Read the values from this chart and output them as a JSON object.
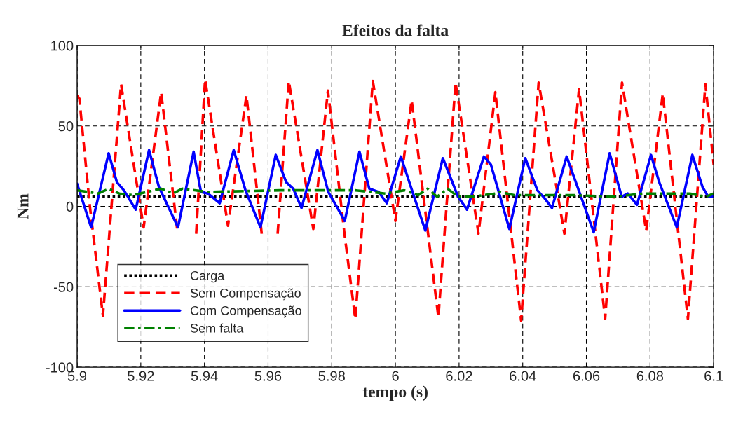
{
  "chart_data": {
    "type": "line",
    "title": "Efeitos da falta",
    "xlabel": "tempo (s)",
    "ylabel": "Nm",
    "xlim": [
      5.9,
      6.1
    ],
    "xticks": [
      5.9,
      5.92,
      5.94,
      5.96,
      5.98,
      6,
      6.02,
      6.04,
      6.06,
      6.08,
      6.1
    ],
    "ylim": [
      -100,
      100
    ],
    "yticks": [
      -100,
      -50,
      0,
      50,
      100
    ],
    "grid": true,
    "legend": "lower left",
    "series": [
      {
        "name": "Carga",
        "color": "#000000",
        "line_style": "dotted",
        "x": [
          5.9,
          6.1
        ],
        "values": [
          6,
          6
        ]
      },
      {
        "name": "Sem Compensação",
        "color": "#ff0000",
        "line_style": "dashed",
        "x": [
          5.9,
          5.9007,
          5.904,
          5.9081,
          5.9138,
          5.9209,
          5.9264,
          5.9316,
          5.9335,
          5.9374,
          5.9402,
          5.9474,
          5.9532,
          5.958,
          5.96,
          5.963,
          5.9665,
          5.9742,
          5.9788,
          5.984,
          5.9874,
          5.9929,
          6.0,
          6.0051,
          6.0135,
          6.0189,
          6.0261,
          6.0314,
          6.0395,
          6.045,
          6.0531,
          6.0577,
          6.0659,
          6.0712,
          6.0788,
          6.084,
          6.0919,
          6.0974,
          6.1
        ],
        "values": [
          69,
          67,
          0,
          -68,
          76,
          -13,
          71,
          -17,
          null,
          -17,
          79,
          -12,
          69,
          -17,
          null,
          -17,
          78,
          -14,
          72,
          -17,
          -70,
          78,
          -9,
          66,
          -69,
          77,
          -17,
          71,
          -71,
          77,
          -17,
          73,
          -70,
          77,
          -15,
          70,
          -70,
          76,
          26
        ]
      },
      {
        "name": "Com Compensação",
        "color": "#0000ff",
        "line_style": "solid",
        "x": [
          5.9,
          5.9044,
          5.9099,
          5.9125,
          5.9147,
          5.9184,
          5.9226,
          5.9257,
          5.9317,
          5.9366,
          5.9389,
          5.9411,
          5.9448,
          5.9492,
          5.9529,
          5.9576,
          5.9624,
          5.9657,
          5.9679,
          5.9705,
          5.9755,
          5.9789,
          5.9841,
          5.9887,
          5.9918,
          5.9947,
          5.9973,
          6.0017,
          6.0094,
          6.0149,
          6.0197,
          6.0225,
          6.0278,
          6.03,
          6.0358,
          6.0408,
          6.0446,
          6.0469,
          6.0492,
          6.0538,
          6.0623,
          6.0673,
          6.0711,
          6.073,
          6.0759,
          6.0803,
          6.0829,
          6.0884,
          6.0933,
          6.0965,
          6.0983,
          6.1
        ],
        "values": [
          14,
          -13,
          33,
          15,
          10,
          -2,
          35,
          12,
          -13,
          34,
          9,
          8,
          2,
          35,
          10,
          -13,
          32,
          15,
          11,
          -1,
          35,
          9,
          -9,
          34,
          11,
          9,
          2,
          31,
          -15,
          30,
          6,
          -2,
          31,
          26,
          -14,
          30,
          10,
          5,
          -1,
          31,
          -16,
          33,
          6,
          8,
          1,
          32,
          15,
          -13,
          32,
          12,
          6,
          6
        ]
      },
      {
        "name": "Sem falta",
        "color": "#008000",
        "line_style": "dashdot",
        "x": [
          5.9,
          5.9066,
          5.9099,
          5.9132,
          5.9176,
          5.9264,
          5.9301,
          5.933,
          5.9411,
          5.9639,
          5.9795,
          5.9874,
          5.9969,
          6.0028,
          6.0072,
          6.0101,
          6.0131,
          6.0164,
          6.0197,
          6.0241,
          6.0314,
          6.0329,
          6.0373,
          6.0557,
          6.0689,
          6.0777,
          6.0829,
          6.0925,
          6.0976,
          6.1
        ],
        "values": [
          10,
          8,
          11,
          8,
          7,
          11,
          8,
          11,
          9,
          10,
          10,
          10,
          8,
          10,
          7,
          11,
          6,
          11,
          6,
          6,
          8,
          9,
          7,
          7,
          6,
          8,
          8,
          8,
          6,
          8
        ]
      }
    ]
  }
}
